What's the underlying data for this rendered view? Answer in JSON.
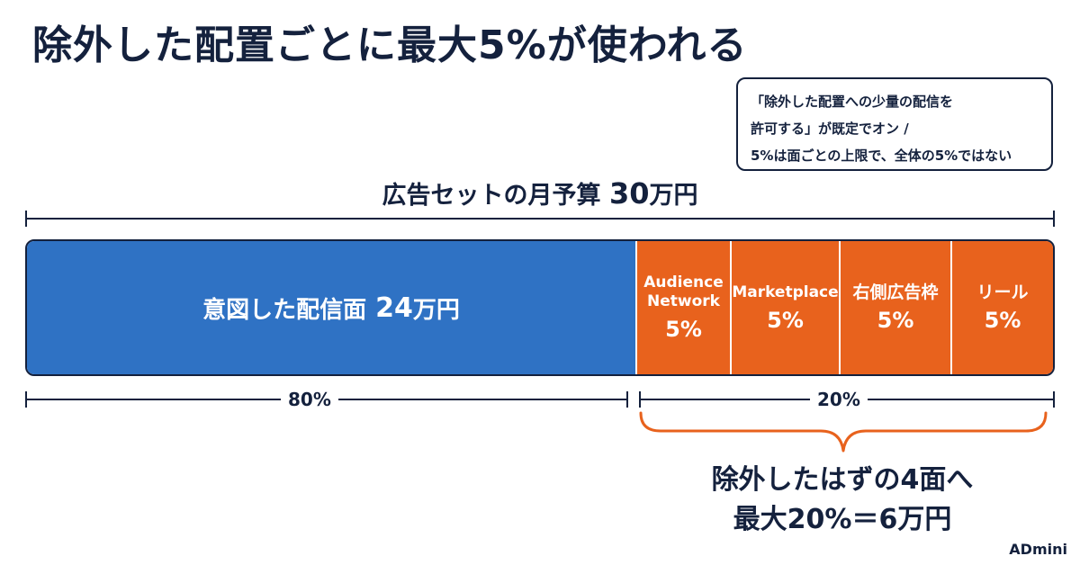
{
  "title": "除外した配置ごとに最大5%が使われる",
  "note": {
    "lines": [
      "「除外した配置への少量の配信を",
      "許可する」が既定でオン /",
      "5%は面ごとの上限で、全体の5%ではない"
    ]
  },
  "budget": {
    "label_prefix": "広告セットの月予算 ",
    "amount": "30",
    "unit": "万円"
  },
  "segments": {
    "main": {
      "label": "意図した配信面",
      "amount": "24",
      "unit": "万円"
    },
    "placements": [
      {
        "label_line1": "Audience",
        "label_line2": "Network",
        "percent": "5%"
      },
      {
        "label_line1": "Marketplace",
        "label_line2": "",
        "percent": "5%"
      },
      {
        "label_line1": "右側広告枠",
        "label_line2": "",
        "percent": "5%"
      },
      {
        "label_line1": "リール",
        "label_line2": "",
        "percent": "5%"
      }
    ]
  },
  "shares": {
    "left": "80%",
    "right": "20%"
  },
  "result": {
    "line1": "除外したはずの4面へ",
    "line2": "最大20%＝6万円"
  },
  "brand": "ADmini",
  "colors": {
    "navy": "#14213d",
    "blue": "#2f72c4",
    "orange": "#e8621d"
  }
}
